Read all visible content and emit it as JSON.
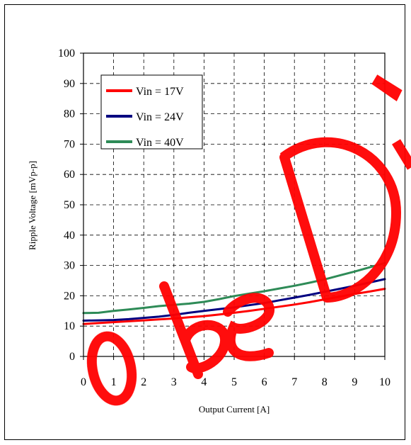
{
  "chart_data": {
    "type": "line",
    "xlabel": "Output Current [A]",
    "ylabel": "Ripple Voltage [mVp-p]",
    "xlim": [
      0,
      10
    ],
    "ylim": [
      0,
      100
    ],
    "xticks": [
      "0",
      "1",
      "2",
      "3",
      "4",
      "5",
      "6",
      "7",
      "8",
      "9",
      "10"
    ],
    "yticks": [
      "0",
      "10",
      "20",
      "30",
      "40",
      "50",
      "60",
      "70",
      "80",
      "90",
      "100"
    ],
    "grid": true,
    "legend_position": "top-left",
    "series": [
      {
        "name": "Vin = 17V",
        "color": "#ff0000",
        "x": [
          0,
          0.5,
          1,
          1.5,
          2,
          2.5,
          3,
          3.5,
          4,
          4.5,
          5,
          5.5,
          6,
          6.5,
          7,
          7.5,
          8,
          8.5,
          9,
          9.5,
          10
        ],
        "y": [
          10.7,
          11.0,
          11.3,
          11.6,
          11.9,
          12.2,
          12.5,
          12.9,
          13.3,
          13.8,
          14.4,
          15.0,
          15.7,
          16.4,
          17.1,
          17.9,
          18.8,
          19.7,
          20.6,
          21.4,
          22.3
        ]
      },
      {
        "name": "Vin = 24V",
        "color": "#000080",
        "x": [
          0,
          0.5,
          1,
          1.5,
          2,
          2.5,
          3,
          3.5,
          4,
          4.5,
          5,
          5.5,
          6,
          6.5,
          7,
          7.5,
          8,
          8.5,
          9,
          9.5,
          10
        ],
        "y": [
          11.8,
          11.9,
          12.0,
          12.3,
          12.7,
          13.1,
          13.7,
          14.4,
          15.0,
          15.6,
          16.2,
          16.9,
          17.6,
          18.5,
          19.4,
          20.3,
          21.3,
          22.3,
          23.3,
          24.4,
          25.5
        ]
      },
      {
        "name": "Vin = 40V",
        "color": "#2e8b57",
        "x": [
          0,
          0.5,
          1,
          1.5,
          2,
          2.5,
          3,
          3.5,
          4,
          4.5,
          5,
          5.5,
          6,
          6.5,
          7,
          7.5,
          8,
          8.5,
          9,
          9.5,
          10
        ],
        "y": [
          14.3,
          14.4,
          15.0,
          15.5,
          16.0,
          16.6,
          17.0,
          17.4,
          18.0,
          18.9,
          19.9,
          20.7,
          21.5,
          22.4,
          23.3,
          24.3,
          25.4,
          26.7,
          28.0,
          29.4,
          30.8
        ]
      }
    ]
  },
  "watermark": {
    "text": "Obe Di",
    "color": "#ff0000"
  }
}
